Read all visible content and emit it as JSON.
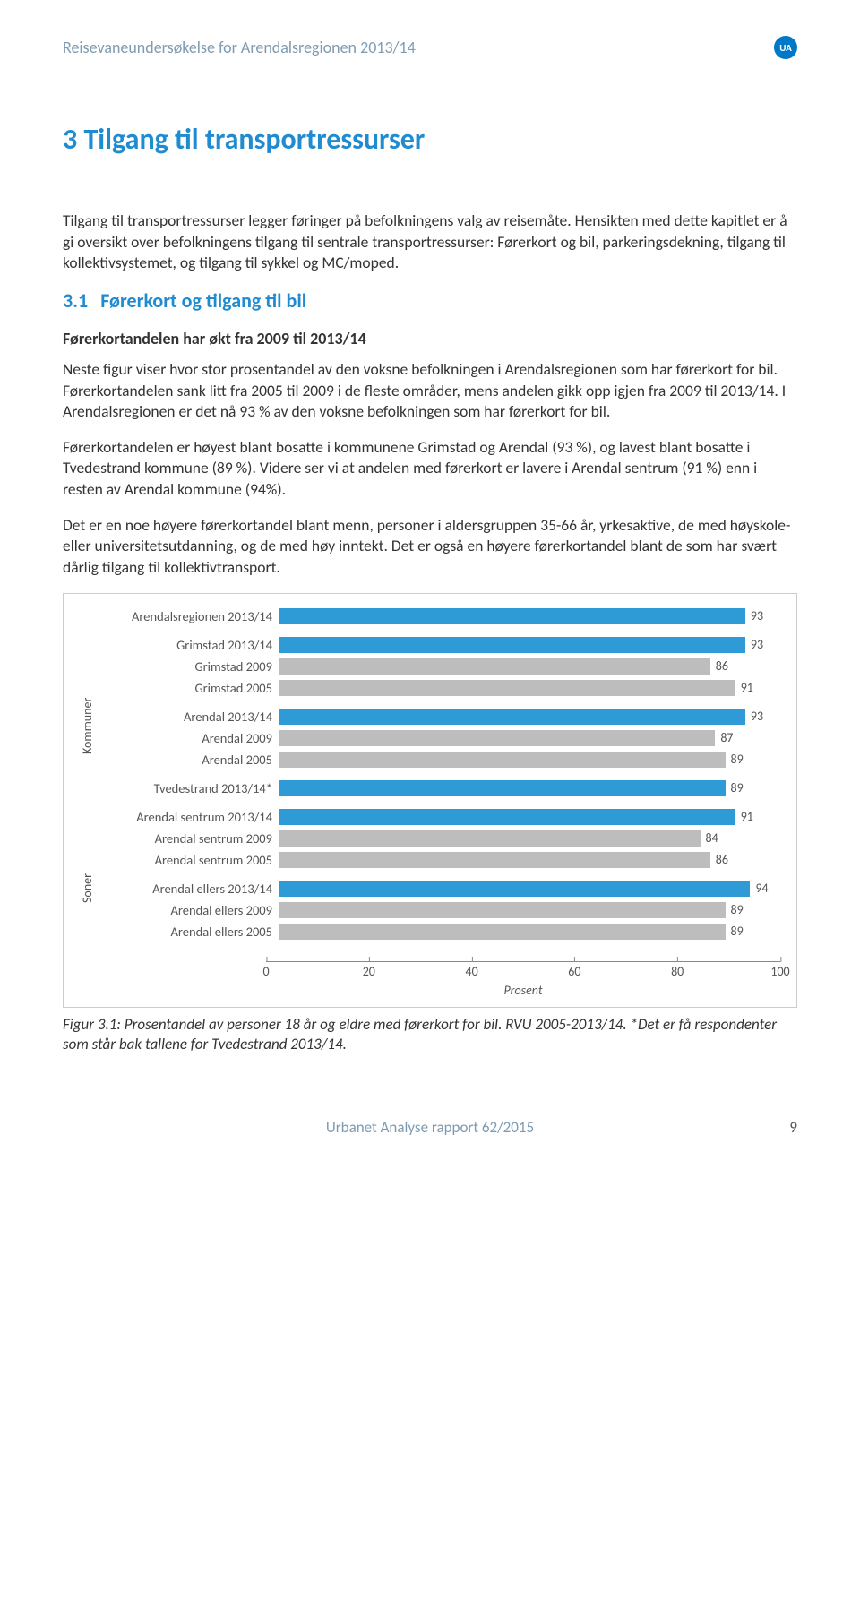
{
  "header": {
    "title": "Reisevaneundersøkelse for Arendalsregionen 2013/14",
    "badge": "UA"
  },
  "h1": "3  Tilgang til transportressurser",
  "intro": "Tilgang til transportressurser legger føringer på befolkningens valg av reisemåte. Hensikten med dette kapitlet er å gi oversikt over befolkningens tilgang til sentrale transportressurser: Førerkort og bil, parkeringsdekning, tilgang til kollektivsystemet, og tilgang til sykkel og MC/moped.",
  "h2_num": "3.1",
  "h2": "Førerkort og tilgang til bil",
  "h3": "Førerkortandelen har økt fra 2009 til 2013/14",
  "p1": "Neste figur viser hvor stor prosentandel av den voksne befolkningen i Arendalsregionen som har førerkort for bil. Førerkortandelen sank litt fra 2005 til 2009 i de fleste områder, mens andelen gikk opp igjen fra 2009 til 2013/14. I Arendalsregionen er det nå 93 % av den voksne befolkningen som har førerkort for bil.",
  "p2": "Førerkortandelen er høyest blant bosatte i kommunene Grimstad og Arendal (93 %), og lavest blant bosatte i Tvedestrand kommune (89 %). Videre ser vi at andelen med førerkort er lavere i Arendal sentrum (91 %) enn i resten av Arendal kommune (94%).",
  "p3": "Det er en noe høyere førerkortandel blant menn, personer i aldersgruppen 35-66 år, yrkesaktive, de med høyskole- eller universitetsutdanning, og de med høy inntekt. Det er også en høyere førerkortandel blant de som har svært dårlig tilgang til kollektivtransport.",
  "chart": {
    "xlim": [
      0,
      100
    ],
    "xticks": [
      0,
      20,
      40,
      60,
      80,
      100
    ],
    "xlabel": "Prosent",
    "bar_color_accent": "#2e9bd6",
    "bar_color_normal": "#bdbdbd",
    "text_color": "#595959",
    "sections": [
      {
        "ylabel": "",
        "groups": [
          [
            {
              "label": "Arendalsregionen 2013/14",
              "value": 93,
              "accent": true
            }
          ]
        ]
      },
      {
        "ylabel": "Kommuner",
        "groups": [
          [
            {
              "label": "Grimstad 2013/14",
              "value": 93,
              "accent": true
            },
            {
              "label": "Grimstad 2009",
              "value": 86,
              "accent": false
            },
            {
              "label": "Grimstad 2005",
              "value": 91,
              "accent": false
            }
          ],
          [
            {
              "label": "Arendal 2013/14",
              "value": 93,
              "accent": true
            },
            {
              "label": "Arendal 2009",
              "value": 87,
              "accent": false
            },
            {
              "label": "Arendal 2005",
              "value": 89,
              "accent": false
            }
          ],
          [
            {
              "label": "Tvedestrand 2013/14*",
              "value": 89,
              "accent": true
            }
          ]
        ]
      },
      {
        "ylabel": "Soner",
        "groups": [
          [
            {
              "label": "Arendal sentrum 2013/14",
              "value": 91,
              "accent": true
            },
            {
              "label": "Arendal sentrum 2009",
              "value": 84,
              "accent": false
            },
            {
              "label": "Arendal sentrum 2005",
              "value": 86,
              "accent": false
            }
          ],
          [
            {
              "label": "Arendal ellers 2013/14",
              "value": 94,
              "accent": true
            },
            {
              "label": "Arendal ellers 2009",
              "value": 89,
              "accent": false
            },
            {
              "label": "Arendal ellers 2005",
              "value": 89,
              "accent": false
            }
          ]
        ]
      }
    ]
  },
  "caption": "Figur 3.1: Prosentandel av personer 18 år og eldre med førerkort for bil. RVU 2005-2013/14. *Det er få respondenter som står bak tallene for Tvedestrand 2013/14.",
  "footer": {
    "text": "Urbanet Analyse rapport 62/2015",
    "page": "9"
  }
}
